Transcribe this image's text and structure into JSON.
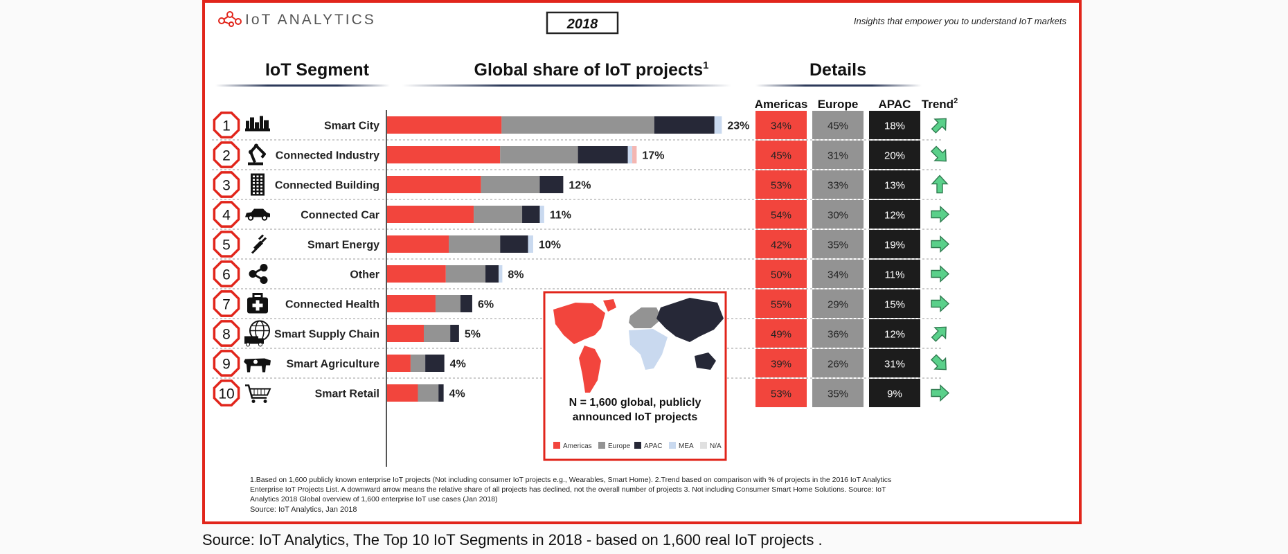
{
  "header": {
    "logo": "IoT ANALYTICS",
    "year": "2018",
    "tagline": "Insights that empower you to understand IoT markets"
  },
  "chart_data": {
    "type": "bar",
    "stacked": true,
    "orientation": "horizontal",
    "title": "Global share of IoT projects",
    "title_sup": "1",
    "segment_header": "IoT Segment",
    "details_header": "Details",
    "detail_columns": [
      "Americas",
      "Europe",
      "APAC",
      "Trend"
    ],
    "trend_sup": "2",
    "categories": [
      "Smart City",
      "Connected Industry",
      "Connected Building",
      "Connected Car",
      "Smart Energy",
      "Other",
      "Connected Health",
      "Smart Supply Chain",
      "Smart Agriculture",
      "Smart Retail"
    ],
    "ranks": [
      "1",
      "2",
      "3",
      "4",
      "5",
      "6",
      "7",
      "8",
      "9",
      "10"
    ],
    "icons": [
      "city-icon",
      "robot-arm-icon",
      "building-icon",
      "car-icon",
      "plug-icon",
      "share-icon",
      "first-aid-kit-icon",
      "globe-truck-icon",
      "cow-icon",
      "shopping-cart-icon"
    ],
    "totals": [
      23,
      17,
      12,
      11,
      10,
      8,
      6,
      5,
      4,
      4
    ],
    "total_labels": [
      "23%",
      "17%",
      "12%",
      "11%",
      "10%",
      "8%",
      "6%",
      "5%",
      "4%",
      "4%"
    ],
    "series": [
      {
        "name": "Americas",
        "color": "#f2453d",
        "values": [
          7.8,
          7.7,
          6.4,
          5.9,
          4.2,
          4.0,
          3.3,
          2.5,
          1.6,
          2.1
        ]
      },
      {
        "name": "Europe",
        "color": "#939393",
        "values": [
          10.4,
          5.3,
          4.0,
          3.3,
          3.5,
          2.7,
          1.7,
          1.8,
          1.0,
          1.4
        ]
      },
      {
        "name": "APAC",
        "color": "#262837",
        "values": [
          4.1,
          3.4,
          1.6,
          1.2,
          1.9,
          0.9,
          0.8,
          0.6,
          1.3,
          0.35
        ]
      },
      {
        "name": "MEA",
        "color": "#c9d9ef",
        "values": [
          0.5,
          0.3,
          0,
          0.3,
          0.35,
          0.25,
          0,
          0,
          0,
          0
        ]
      },
      {
        "name": "N/A",
        "color": "#f4b6b2",
        "values": [
          0,
          0.3,
          0,
          0,
          0,
          0,
          0,
          0,
          0,
          0
        ]
      }
    ],
    "xlim": [
      0,
      25
    ],
    "regional_shares": {
      "Americas": [
        "34%",
        "45%",
        "53%",
        "54%",
        "42%",
        "50%",
        "55%",
        "49%",
        "39%",
        "53%"
      ],
      "Europe": [
        "45%",
        "31%",
        "33%",
        "30%",
        "35%",
        "34%",
        "29%",
        "36%",
        "26%",
        "35%"
      ],
      "APAC": [
        "18%",
        "20%",
        "13%",
        "12%",
        "19%",
        "11%",
        "15%",
        "12%",
        "31%",
        "9%"
      ]
    },
    "trend": [
      "up",
      "down",
      "up",
      "neutral",
      "neutral",
      "neutral",
      "neutral",
      "up",
      "down",
      "neutral"
    ],
    "detail_colors": {
      "Americas": "#f2453d",
      "Europe": "#939393",
      "APAC": "#1c1c1c",
      "Trend": "#5ad08a"
    }
  },
  "map_inset": {
    "note_line1": "N = 1,600 global, publicly",
    "note_line2": "announced IoT projects",
    "legend": [
      {
        "label": "Americas",
        "color": "#f2453d"
      },
      {
        "label": "Europe",
        "color": "#939393"
      },
      {
        "label": "APAC",
        "color": "#262837"
      },
      {
        "label": "MEA",
        "color": "#c9d9ef"
      },
      {
        "label": "N/A",
        "color": "#e0e0e0"
      }
    ]
  },
  "footnote": {
    "line1": "1.Based on 1,600 publicly known enterprise IoT projects (Not including consumer IoT projects e.g., Wearables, Smart Home). 2.Trend based on comparison with % of projects in the 2016 IoT Analytics",
    "line2": "Enterprise IoT Projects List. A downward arrow  means the relative share of all projects has declined, not the overall number of projects 3. Not including Consumer Smart Home Solutions. Source: IoT",
    "line3": "Analytics 2018 Global overview of 1,600 enterprise IoT use cases (Jan 2018)",
    "source": "Source: IoT Analytics, Jan 2018"
  },
  "caption": "Source: IoT Analytics, The Top 10 IoT Segments in 2018 - based on 1,600 real IoT projects ."
}
